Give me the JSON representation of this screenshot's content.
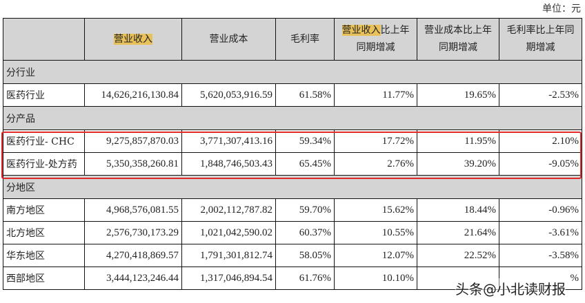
{
  "unit_label": "单位：元",
  "columns": {
    "c0": "",
    "c1": "营业收入",
    "c2": "营业成本",
    "c3": "毛利率",
    "c4_hl": "营业收入",
    "c4_rest": "比上年同期增减",
    "c5": "营业成本比上年同期增减",
    "c6": "毛利率比上年同期增减"
  },
  "sections": [
    {
      "title": "分行业",
      "rows": [
        {
          "label": "医药行业",
          "revenue": "14,626,216,130.84",
          "cost": "5,620,053,916.59",
          "gross_margin": "61.58%",
          "revenue_yoy": "11.77%",
          "cost_yoy": "19.65%",
          "margin_yoy": "-2.53%"
        }
      ]
    },
    {
      "title": "分产品",
      "rows": [
        {
          "label": "医药行业- CHC",
          "revenue": "9,275,857,870.03",
          "cost": "3,771,307,413.16",
          "gross_margin": "59.34%",
          "revenue_yoy": "17.72%",
          "cost_yoy": "11.95%",
          "margin_yoy": "2.10%"
        },
        {
          "label": "医药行业-处方药",
          "revenue": "5,350,358,260.81",
          "cost": "1,848,746,503.43",
          "gross_margin": "65.45%",
          "revenue_yoy": "2.76%",
          "cost_yoy": "39.20%",
          "margin_yoy": "-9.05%"
        }
      ]
    },
    {
      "title": "分地区",
      "rows": [
        {
          "label": "南方地区",
          "revenue": "4,968,576,081.55",
          "cost": "2,002,112,787.82",
          "gross_margin": "59.70%",
          "revenue_yoy": "15.62%",
          "cost_yoy": "18.44%",
          "margin_yoy": "-0.96%"
        },
        {
          "label": "北方地区",
          "revenue": "2,576,730,173.29",
          "cost": "1,021,042,590.02",
          "gross_margin": "60.37%",
          "revenue_yoy": "10.55%",
          "cost_yoy": "21.64%",
          "margin_yoy": "-3.61%"
        },
        {
          "label": "华东地区",
          "revenue": "4,270,418,869.57",
          "cost": "1,791,301,812.74",
          "gross_margin": "58.05%",
          "revenue_yoy": "12.07%",
          "cost_yoy": "22.52%",
          "margin_yoy": "-3.58%"
        },
        {
          "label": "西部地区",
          "revenue": "3,444,123,246.44",
          "cost": "1,317,046,894.54",
          "gross_margin": "61.76%",
          "revenue_yoy": "10.10%",
          "cost_yoy": "",
          "margin_yoy": "%"
        }
      ]
    }
  ],
  "watermark": "头条@小北读财报",
  "colors": {
    "header_bg": "#d4d4d4",
    "highlight_text_bg": "#e8c15a",
    "highlight_box": "#e0292b"
  }
}
